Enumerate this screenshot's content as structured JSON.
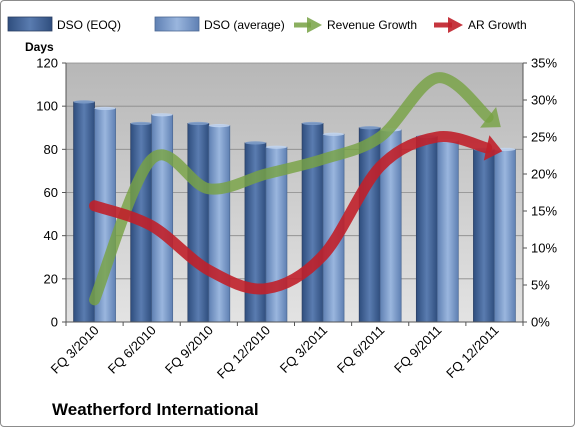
{
  "chart_data": {
    "type": "bar",
    "company": "Weatherford International",
    "ylabel_left": "Days",
    "categories": [
      "FQ 3/2010",
      "FQ 6/2010",
      "FQ 9/2010",
      "FQ 12/2010",
      "FQ 3/2011",
      "FQ 6/2011",
      "FQ 9/2011",
      "FQ 12/2011"
    ],
    "ylim_left": [
      0,
      120
    ],
    "ylim_right": [
      0,
      0.35
    ],
    "left_ticks": [
      "0",
      "20",
      "40",
      "60",
      "80",
      "100",
      "120"
    ],
    "right_ticks": [
      "0%",
      "5%",
      "10%",
      "15%",
      "20%",
      "25%",
      "30%",
      "35%"
    ],
    "grid": true,
    "legend_position": "top",
    "series": [
      {
        "name": "DSO (EOQ)",
        "kind": "bar",
        "axis": "left",
        "color": "#4a6a9c",
        "values": [
          102,
          92,
          92,
          83,
          92,
          90,
          86,
          80
        ]
      },
      {
        "name": "DSO (average)",
        "kind": "bar",
        "axis": "left",
        "color": "#7f9fcf",
        "values": [
          99,
          96,
          91,
          81,
          87,
          89,
          84,
          80
        ]
      },
      {
        "name": "Revenue Growth",
        "kind": "arrow-line",
        "axis": "right",
        "color": "#77a244",
        "values": [
          0.03,
          0.22,
          0.18,
          0.2,
          0.22,
          0.25,
          0.33,
          0.27
        ]
      },
      {
        "name": "AR Growth",
        "kind": "arrow-line",
        "axis": "right",
        "color": "#c0202a",
        "values": [
          0.157,
          0.13,
          0.07,
          0.045,
          0.09,
          0.21,
          0.25,
          0.233
        ]
      }
    ]
  }
}
